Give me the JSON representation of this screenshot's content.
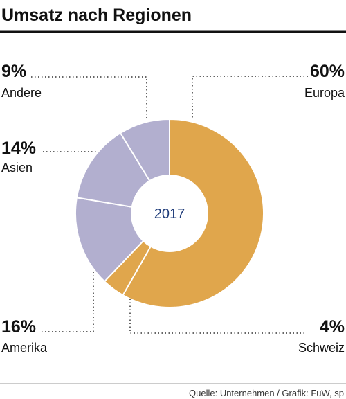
{
  "chart_data": {
    "type": "donut",
    "title": "Umsatz nach Regionen",
    "center_label": "2017",
    "source": "Quelle: Unternehmen / Grafik: FuW, sp",
    "categories": [
      "Europa",
      "Schweiz",
      "Amerika",
      "Asien",
      "Andere"
    ],
    "values": [
      60,
      4,
      16,
      14,
      9
    ],
    "value_labels": [
      "60%",
      "4%",
      "16%",
      "14%",
      "9%"
    ],
    "colors": [
      "#e0a64c",
      "#e0a64c",
      "#b2afcf",
      "#b2afcf",
      "#b2afcf"
    ]
  }
}
